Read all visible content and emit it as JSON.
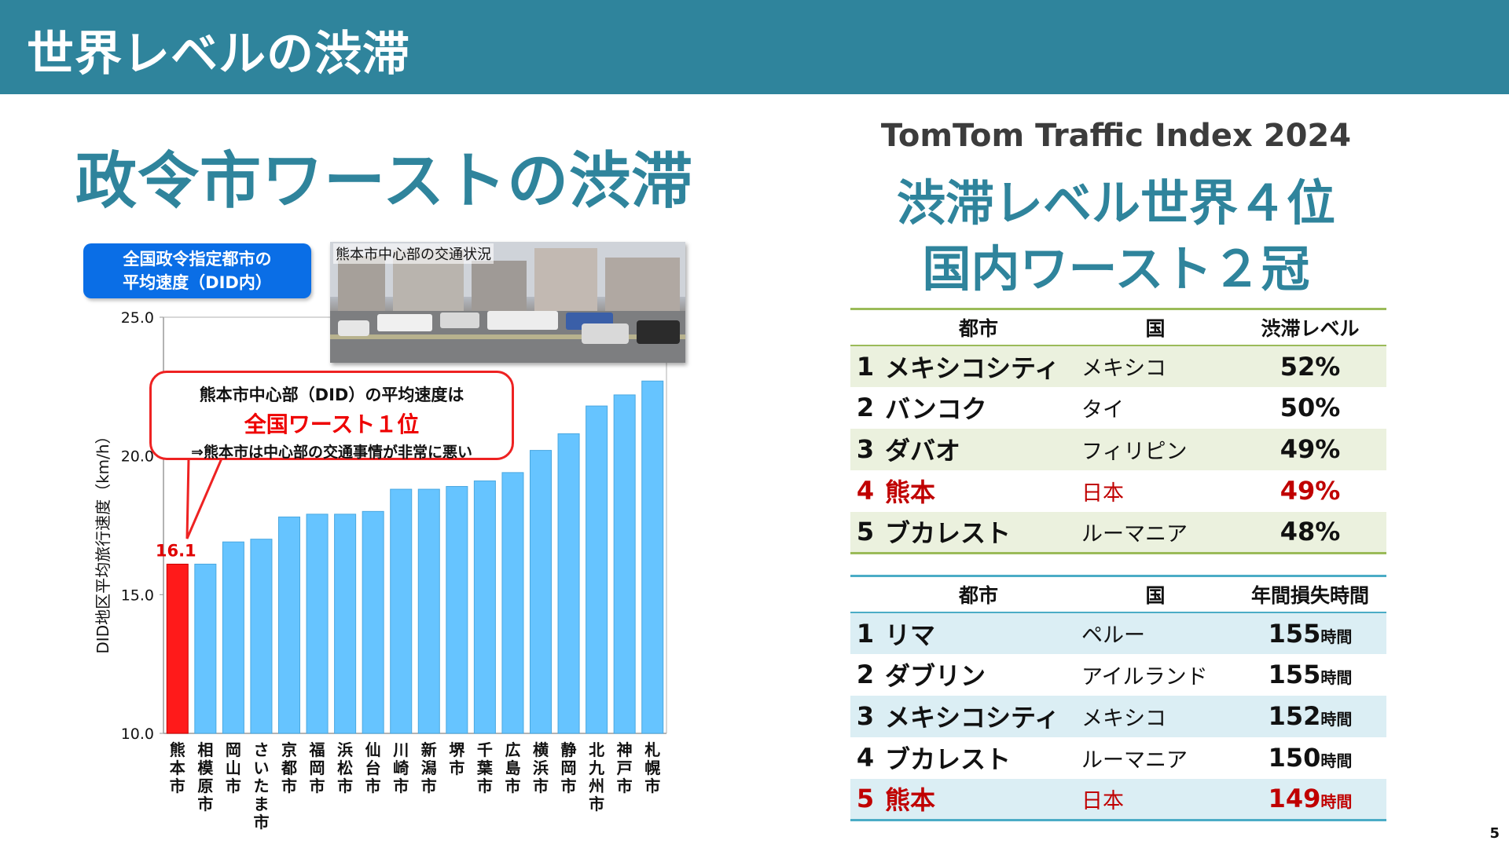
{
  "header": {
    "title": "世界レベルの渋滞"
  },
  "left": {
    "section_title": "政令市ワーストの渋滞",
    "legend_label": "全国政令指定都市の\n平均速度（DID内）",
    "photo_label": "熊本市中心部の交通状況",
    "callout": {
      "line1": "熊本市中心部（DID）の平均速度は",
      "line2": "全国ワースト１位",
      "line3": "⇒熊本市は中心部の交通事情が非常に悪い"
    }
  },
  "chart_data": {
    "type": "bar",
    "title": "",
    "xlabel": "",
    "ylabel": "DID地区平均旅行速度（km/h）",
    "ylim": [
      10.0,
      25.0
    ],
    "yticks": [
      "10.0",
      "15.0",
      "20.0",
      "25.0"
    ],
    "categories": [
      "熊本市",
      "相模原市",
      "岡山市",
      "さいたま市",
      "京都市",
      "福岡市",
      "浜松市",
      "仙台市",
      "川崎市",
      "新潟市",
      "堺市",
      "千葉市",
      "広島市",
      "横浜市",
      "静岡市",
      "北九州市",
      "神戸市",
      "札幌市"
    ],
    "values": [
      16.1,
      16.1,
      16.9,
      17.0,
      17.8,
      17.9,
      17.9,
      18.0,
      18.8,
      18.8,
      18.9,
      19.1,
      19.4,
      20.2,
      20.8,
      21.8,
      22.2,
      22.7
    ],
    "highlight_label": "16.1",
    "colors": {
      "highlight": "#ff1a1a",
      "bar": "#66c4ff"
    }
  },
  "right": {
    "subtitle": "TomTom Traffic Index 2024",
    "headline1": "渋滞レベル世界４位",
    "headline2": "国内ワースト２冠",
    "table1": {
      "headers": [
        "",
        "都市",
        "国",
        "渋滞レベル"
      ],
      "rows": [
        {
          "rank": "1",
          "city": "メキシコシティ",
          "country": "メキシコ",
          "value": "52%"
        },
        {
          "rank": "2",
          "city": "バンコク",
          "country": "タイ",
          "value": "50%"
        },
        {
          "rank": "3",
          "city": "ダバオ",
          "country": "フィリピン",
          "value": "49%"
        },
        {
          "rank": "4",
          "city": "熊本",
          "country": "日本",
          "value": "49%"
        },
        {
          "rank": "5",
          "city": "ブカレスト",
          "country": "ルーマニア",
          "value": "48%"
        }
      ]
    },
    "table2": {
      "headers": [
        "",
        "都市",
        "国",
        "年間損失時間"
      ],
      "unit": "時間",
      "rows": [
        {
          "rank": "1",
          "city": "リマ",
          "country": "ペルー",
          "value": "155"
        },
        {
          "rank": "2",
          "city": "ダブリン",
          "country": "アイルランド",
          "value": "155"
        },
        {
          "rank": "3",
          "city": "メキシコシティ",
          "country": "メキシコ",
          "value": "152"
        },
        {
          "rank": "4",
          "city": "ブカレスト",
          "country": "ルーマニア",
          "value": "150"
        },
        {
          "rank": "5",
          "city": "熊本",
          "country": "日本",
          "value": "149"
        }
      ]
    }
  },
  "colors": {
    "teal": "#2f849c",
    "highlight_text": "#c00000"
  },
  "footer": {
    "page_number": "5"
  }
}
